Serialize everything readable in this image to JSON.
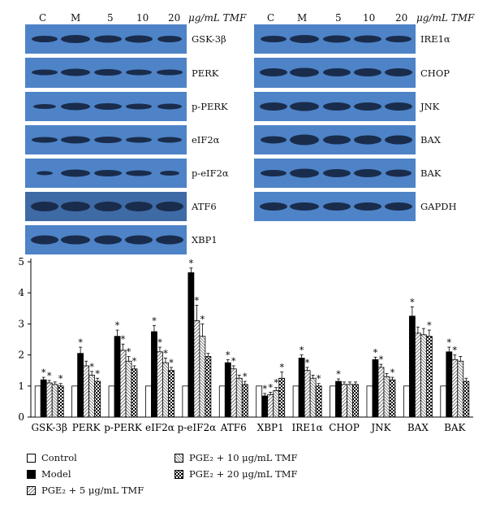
{
  "blot_headers": {
    "left": [
      "C",
      "M",
      "5",
      "10",
      "20"
    ],
    "right": [
      "C",
      "M",
      "5",
      "10",
      "20"
    ],
    "unit": "μg/mL TMF"
  },
  "blot_labels": {
    "left": [
      "GSK-3β",
      "PERK",
      "p-PERK",
      "eIF2α",
      "p-eIF2α",
      "ATF6",
      "XBP1"
    ],
    "right": [
      "IRE1α",
      "CHOP",
      "JNK",
      "BAX",
      "BAK",
      "GAPDH"
    ]
  },
  "colors": {
    "blot_background": "#4e83c7",
    "band": "#1a2c4c",
    "bar_outline": "#000000"
  },
  "chart_data": {
    "type": "bar",
    "categories": [
      "GSK-3β",
      "PERK",
      "p-PERK",
      "eIF2α",
      "p-eIF2α",
      "ATF6",
      "XBP1",
      "IRE1α",
      "CHOP",
      "JNK",
      "BAX",
      "BAK"
    ],
    "ylim": [
      0,
      5
    ],
    "yticks": [
      "0",
      "1",
      "2",
      "3",
      "4",
      "5"
    ],
    "grid": false,
    "legend_position": "bottom",
    "series": [
      {
        "name": "Control",
        "pattern": "white",
        "values": [
          1,
          1,
          1,
          1,
          1,
          1,
          1,
          1,
          1,
          1,
          1,
          1
        ],
        "errors": [
          0,
          0,
          0,
          0,
          0,
          0,
          0,
          0,
          0,
          0,
          0,
          0
        ],
        "marks": [
          "",
          "",
          "",
          "",
          "",
          "",
          "",
          "",
          "",
          "",
          "",
          ""
        ]
      },
      {
        "name": "Model",
        "pattern": "black",
        "values": [
          1.2,
          2.05,
          2.6,
          2.75,
          4.65,
          1.75,
          0.68,
          1.9,
          1.15,
          1.85,
          3.25,
          2.1
        ],
        "errors": [
          0.08,
          0.2,
          0.2,
          0.2,
          0.15,
          0.1,
          0.08,
          0.1,
          0.08,
          0.08,
          0.3,
          0.15
        ],
        "marks": [
          "*",
          "*",
          "*",
          "*",
          "*",
          "*",
          "*",
          "*",
          "*",
          "*",
          "*",
          "*"
        ]
      },
      {
        "name": "PGE₂ + 5 μg/mL TMF",
        "pattern": "hatch",
        "values": [
          1.1,
          1.65,
          2.15,
          2.1,
          3.1,
          1.55,
          0.72,
          1.5,
          1.05,
          1.6,
          2.7,
          1.85
        ],
        "errors": [
          0.08,
          0.15,
          0.2,
          0.15,
          0.5,
          0.1,
          0.08,
          0.1,
          0.08,
          0.1,
          0.2,
          0.15
        ],
        "marks": [
          "*",
          "",
          "*",
          "*",
          "*",
          "*",
          "*",
          "*",
          "",
          "*",
          "",
          "*"
        ]
      },
      {
        "name": "PGE₂ + 10 μg/mL TMF",
        "pattern": "hatch2",
        "values": [
          1.05,
          1.35,
          1.8,
          1.75,
          2.6,
          1.25,
          0.85,
          1.25,
          1.05,
          1.3,
          2.65,
          1.8
        ],
        "errors": [
          0.08,
          0.12,
          0.15,
          0.15,
          0.4,
          0.1,
          0.1,
          0.1,
          0.08,
          0.1,
          0.2,
          0.15
        ],
        "marks": [
          "",
          "*",
          "*",
          "*",
          "*",
          "",
          "*",
          "",
          "",
          "",
          "",
          ""
        ]
      },
      {
        "name": "PGE₂ + 20 μg/mL TMF",
        "pattern": "checker",
        "values": [
          1.0,
          1.15,
          1.55,
          1.5,
          1.95,
          1.05,
          1.25,
          1.0,
          1.05,
          1.2,
          2.6,
          1.15
        ],
        "errors": [
          0.08,
          0.1,
          0.1,
          0.1,
          0.1,
          0.1,
          0.2,
          0.08,
          0.08,
          0.08,
          0.2,
          0.1
        ],
        "marks": [
          "*",
          "*",
          "*",
          "*",
          "",
          "*",
          "*",
          "*",
          "",
          "*",
          "*",
          ""
        ]
      }
    ]
  }
}
